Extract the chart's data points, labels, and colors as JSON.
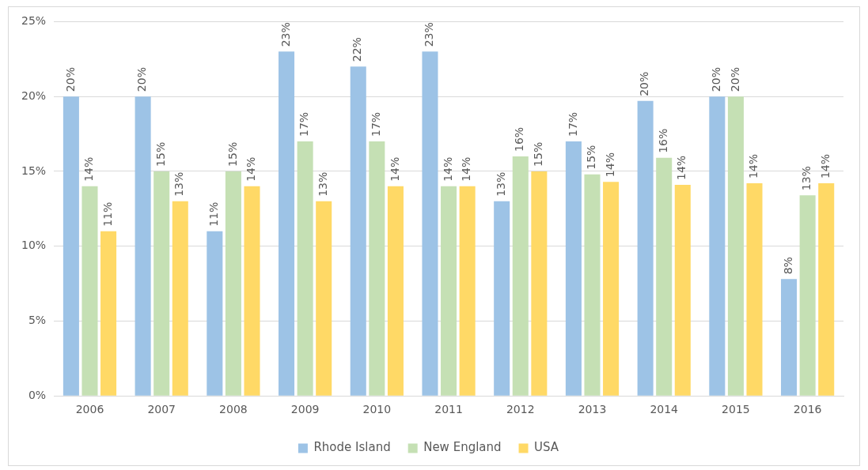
{
  "chart_data": {
    "type": "bar",
    "categories": [
      "2006",
      "2007",
      "2008",
      "2009",
      "2010",
      "2011",
      "2012",
      "2013",
      "2014",
      "2015",
      "2016"
    ],
    "series": [
      {
        "name": "Rhode Island",
        "color": "#9dc3e6",
        "values": [
          20,
          20,
          11,
          23,
          22,
          23,
          13,
          17,
          19.7,
          20,
          7.8
        ],
        "value_labels": [
          "20%",
          "20%",
          "11%",
          "23%",
          "22%",
          "23%",
          "13%",
          "17%",
          "20%",
          "20%",
          "8%"
        ]
      },
      {
        "name": "New England",
        "color": "#c5e0b4",
        "values": [
          14,
          15,
          15,
          17,
          17,
          14,
          16,
          14.8,
          15.9,
          20,
          13.4
        ],
        "value_labels": [
          "14%",
          "15%",
          "15%",
          "17%",
          "17%",
          "14%",
          "16%",
          "15%",
          "16%",
          "20%",
          "13%"
        ]
      },
      {
        "name": "USA",
        "color": "#ffd966",
        "values": [
          11,
          13,
          14,
          13,
          14,
          14,
          15,
          14.3,
          14.1,
          14.2,
          14.2
        ],
        "value_labels": [
          "11%",
          "13%",
          "14%",
          "13%",
          "14%",
          "14%",
          "15%",
          "14%",
          "14%",
          "14%",
          "14%"
        ]
      }
    ],
    "ylim": [
      0,
      25
    ],
    "yticks": [
      {
        "value": 0,
        "label": "0%"
      },
      {
        "value": 5,
        "label": "5%"
      },
      {
        "value": 10,
        "label": "10%"
      },
      {
        "value": 15,
        "label": "15%"
      },
      {
        "value": 20,
        "label": "20%"
      },
      {
        "value": 25,
        "label": "25%"
      }
    ],
    "grid": "y",
    "legend": "bottom"
  }
}
